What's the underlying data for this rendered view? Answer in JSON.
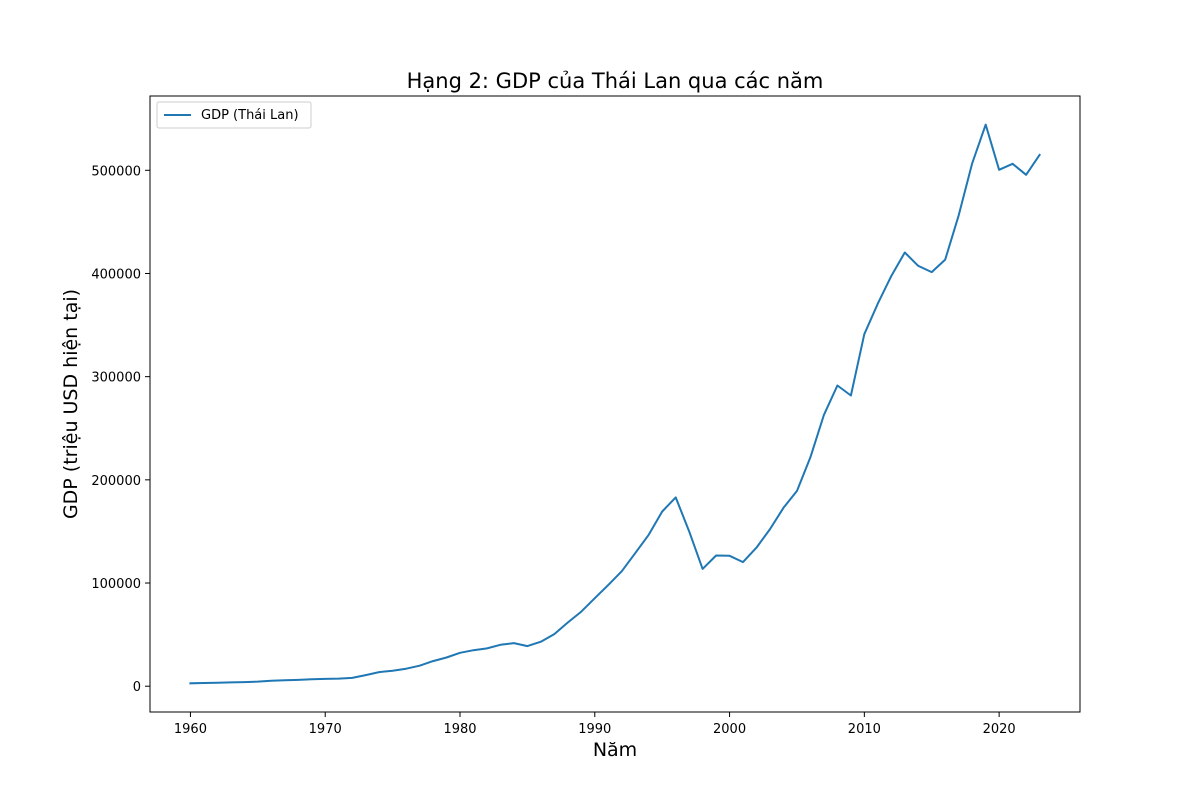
{
  "chart_data": {
    "type": "line",
    "title": "Hạng 2: GDP của Thái Lan qua các năm",
    "xlabel": "Năm",
    "ylabel": "GDP (triệu USD hiện tại)",
    "xlim": [
      1957,
      2026
    ],
    "ylim": [
      -25000,
      572000
    ],
    "x_ticks": [
      1960,
      1970,
      1980,
      1990,
      2000,
      2010,
      2020
    ],
    "y_ticks": [
      0,
      100000,
      200000,
      300000,
      400000,
      500000
    ],
    "grid": false,
    "legend": {
      "position": "top-left",
      "entries": [
        "GDP (Thái Lan)"
      ]
    },
    "series": [
      {
        "name": "GDP (Thái Lan)",
        "color": "#1f77b4",
        "x": [
          1960,
          1961,
          1962,
          1963,
          1964,
          1965,
          1966,
          1967,
          1968,
          1969,
          1970,
          1971,
          1972,
          1973,
          1974,
          1975,
          1976,
          1977,
          1978,
          1979,
          1980,
          1981,
          1982,
          1983,
          1984,
          1985,
          1986,
          1987,
          1988,
          1989,
          1990,
          1991,
          1992,
          1993,
          1994,
          1995,
          1996,
          1997,
          1998,
          1999,
          2000,
          2001,
          2002,
          2003,
          2004,
          2005,
          2006,
          2007,
          2008,
          2009,
          2010,
          2011,
          2012,
          2013,
          2014,
          2015,
          2016,
          2017,
          2018,
          2019,
          2020,
          2021,
          2022,
          2023
        ],
        "values": [
          2800,
          3100,
          3400,
          3700,
          4000,
          4500,
          5300,
          5700,
          6100,
          6700,
          7100,
          7400,
          8000,
          10800,
          13700,
          14900,
          17000,
          19900,
          24300,
          27800,
          32400,
          34900,
          36600,
          40100,
          41800,
          38900,
          43100,
          50500,
          61700,
          72300,
          85300,
          98200,
          111400,
          128900,
          146700,
          169300,
          183000,
          150200,
          113700,
          126700,
          126400,
          120300,
          134300,
          152300,
          172900,
          189300,
          221800,
          262900,
          291400,
          281700,
          341100,
          370800,
          397600,
          420300,
          407300,
          401300,
          413400,
          456400,
          506800,
          544300,
          500500,
          506300,
          495600,
          514900
        ]
      }
    ]
  }
}
